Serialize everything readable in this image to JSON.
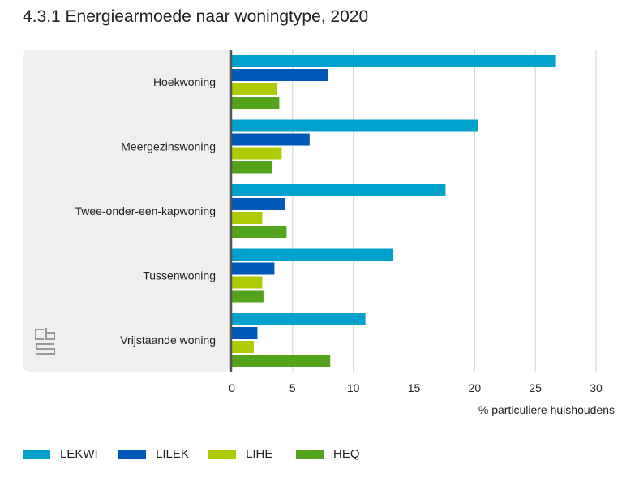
{
  "title": "4.3.1 Energiearmoede naar woningtype, 2020",
  "chart_data": {
    "type": "bar",
    "orientation": "horizontal",
    "title": "4.3.1 Energiearmoede naar woningtype, 2020",
    "xlabel": "% particuliere huishoudens",
    "xlim": [
      0,
      30
    ],
    "xticks": [
      "0",
      "5",
      "10",
      "15",
      "20",
      "25",
      "30"
    ],
    "grid": true,
    "legend_position": "bottom-left",
    "categories": [
      "Hoekwoning",
      "Meergezinswoning",
      "Twee-onder-een-kapwoning",
      "Tussenwoning",
      "Vrijstaande woning"
    ],
    "series": [
      {
        "name": "LEKWI",
        "color": "#00a1cd",
        "values": [
          26.7,
          20.3,
          17.6,
          13.3,
          11.0
        ]
      },
      {
        "name": "LILEK",
        "color": "#0058b8",
        "values": [
          7.9,
          6.4,
          4.4,
          3.5,
          2.1
        ]
      },
      {
        "name": "LIHE",
        "color": "#afcb05",
        "values": [
          3.7,
          4.1,
          2.5,
          2.5,
          1.8
        ]
      },
      {
        "name": "HEQ",
        "color": "#53a31d",
        "values": [
          3.9,
          3.3,
          4.5,
          2.6,
          8.1
        ]
      }
    ]
  },
  "logo": "cbs"
}
